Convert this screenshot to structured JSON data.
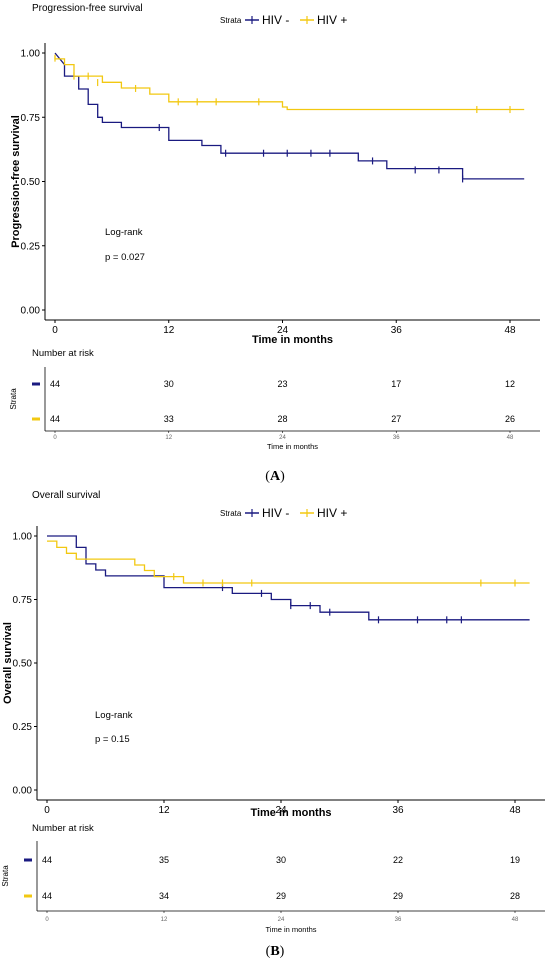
{
  "colors": {
    "hiv_neg": "#1a1a80",
    "hiv_pos": "#f2c811"
  },
  "chart_data": [
    {
      "type": "line",
      "panel": "A",
      "title": "Progression-free survival",
      "legend": {
        "title": "Strata",
        "placement": "top-center",
        "entries": [
          "HIV -",
          "HIV +"
        ]
      },
      "xlabel": "Time in months",
      "ylabel": "Progression-free survival",
      "xlim": [
        -2,
        50
      ],
      "ylim": [
        -0.05,
        1.05
      ],
      "xticks": [
        "0",
        "12",
        "24",
        "36",
        "48"
      ],
      "yticks": [
        "0.00",
        "0.25",
        "0.50",
        "0.75",
        "1.00"
      ],
      "annotations": [
        "Log-rank",
        "p = 0.027"
      ],
      "series": [
        {
          "name": "HIV -",
          "color": "#1a1a80",
          "steps": [
            [
              0,
              1.0
            ],
            [
              1,
              0.955
            ],
            [
              1,
              0.91
            ],
            [
              2.5,
              0.91
            ],
            [
              2.5,
              0.86
            ],
            [
              3.5,
              0.86
            ],
            [
              3.5,
              0.8
            ],
            [
              4.5,
              0.8
            ],
            [
              4.5,
              0.75
            ],
            [
              5,
              0.75
            ],
            [
              5,
              0.73
            ],
            [
              7,
              0.73
            ],
            [
              7,
              0.71
            ],
            [
              12,
              0.71
            ],
            [
              12,
              0.66
            ],
            [
              15.5,
              0.66
            ],
            [
              15.5,
              0.64
            ],
            [
              17.5,
              0.64
            ],
            [
              17.5,
              0.61
            ],
            [
              32,
              0.61
            ],
            [
              32,
              0.58
            ],
            [
              35,
              0.58
            ],
            [
              35,
              0.55
            ],
            [
              43,
              0.55
            ],
            [
              43,
              0.51
            ],
            [
              49.5,
              0.51
            ]
          ],
          "censors": [
            [
              11,
              0.71
            ],
            [
              18,
              0.61
            ],
            [
              22,
              0.61
            ],
            [
              24.5,
              0.61
            ],
            [
              27,
              0.61
            ],
            [
              29,
              0.61
            ],
            [
              33.5,
              0.58
            ],
            [
              38,
              0.545
            ],
            [
              40.5,
              0.545
            ],
            [
              43,
              0.51
            ]
          ]
        },
        {
          "name": "HIV +",
          "color": "#f2c811",
          "steps": [
            [
              0,
              0.99
            ],
            [
              0,
              0.977
            ],
            [
              1,
              0.977
            ],
            [
              1,
              0.955
            ],
            [
              2,
              0.955
            ],
            [
              2,
              0.91
            ],
            [
              5,
              0.91
            ],
            [
              5,
              0.886
            ],
            [
              7,
              0.886
            ],
            [
              7,
              0.864
            ],
            [
              10,
              0.864
            ],
            [
              10,
              0.84
            ],
            [
              12,
              0.84
            ],
            [
              12,
              0.81
            ],
            [
              24,
              0.81
            ],
            [
              24,
              0.79
            ],
            [
              24.5,
              0.79
            ],
            [
              24.5,
              0.78
            ],
            [
              49.5,
              0.78
            ]
          ],
          "censors": [
            [
              0,
              0.98
            ],
            [
              2,
              0.91
            ],
            [
              3.5,
              0.91
            ],
            [
              4.5,
              0.885
            ],
            [
              8.5,
              0.862
            ],
            [
              13,
              0.81
            ],
            [
              15,
              0.81
            ],
            [
              17,
              0.81
            ],
            [
              21.5,
              0.81
            ],
            [
              44.5,
              0.78
            ],
            [
              48,
              0.78
            ]
          ]
        }
      ],
      "risk_table": {
        "title": "Number at risk",
        "strata_label": "Strata",
        "xlabel": "Time in months",
        "xticks": [
          "0",
          "12",
          "24",
          "36",
          "48"
        ],
        "rows": [
          {
            "name": "HIV -",
            "values": [
              "44",
              "30",
              "23",
              "17",
              "12"
            ]
          },
          {
            "name": "HIV +",
            "values": [
              "44",
              "33",
              "28",
              "27",
              "26"
            ]
          }
        ]
      }
    },
    {
      "type": "line",
      "panel": "B",
      "title": "Overall survival",
      "legend": {
        "title": "Strata",
        "placement": "top-center",
        "entries": [
          "HIV -",
          "HIV +"
        ]
      },
      "xlabel": "Time in months",
      "ylabel": "Overall survival",
      "xlim": [
        -2,
        50
      ],
      "ylim": [
        -0.05,
        1.05
      ],
      "xticks": [
        "0",
        "12",
        "24",
        "36",
        "48"
      ],
      "yticks": [
        "0.00",
        "0.25",
        "0.50",
        "0.75",
        "1.00"
      ],
      "annotations": [
        "Log-rank",
        "p = 0.15"
      ],
      "series": [
        {
          "name": "HIV -",
          "color": "#1a1a80",
          "steps": [
            [
              0,
              1.0
            ],
            [
              3,
              1.0
            ],
            [
              3,
              0.955
            ],
            [
              4,
              0.955
            ],
            [
              4,
              0.89
            ],
            [
              5,
              0.89
            ],
            [
              5,
              0.866
            ],
            [
              6,
              0.866
            ],
            [
              6,
              0.843
            ],
            [
              12,
              0.843
            ],
            [
              12,
              0.797
            ],
            [
              19,
              0.797
            ],
            [
              19,
              0.774
            ],
            [
              23,
              0.774
            ],
            [
              23,
              0.75
            ],
            [
              25,
              0.75
            ],
            [
              25,
              0.726
            ],
            [
              28,
              0.726
            ],
            [
              28,
              0.7
            ],
            [
              33,
              0.7
            ],
            [
              33,
              0.67
            ],
            [
              49.5,
              0.67
            ]
          ],
          "censors": [
            [
              18,
              0.797
            ],
            [
              22,
              0.774
            ],
            [
              25,
              0.726
            ],
            [
              27,
              0.726
            ],
            [
              29,
              0.7
            ],
            [
              34,
              0.67
            ],
            [
              38,
              0.67
            ],
            [
              41,
              0.67
            ],
            [
              42.5,
              0.67
            ]
          ]
        },
        {
          "name": "HIV +",
          "color": "#f2c811",
          "steps": [
            [
              0,
              0.98
            ],
            [
              1,
              0.98
            ],
            [
              1,
              0.955
            ],
            [
              2,
              0.955
            ],
            [
              2,
              0.932
            ],
            [
              3,
              0.932
            ],
            [
              3,
              0.909
            ],
            [
              9,
              0.909
            ],
            [
              9,
              0.886
            ],
            [
              10,
              0.886
            ],
            [
              10,
              0.864
            ],
            [
              11,
              0.864
            ],
            [
              11,
              0.84
            ],
            [
              14,
              0.84
            ],
            [
              14,
              0.815
            ],
            [
              49.5,
              0.815
            ]
          ],
          "censors": [
            [
              13,
              0.84
            ],
            [
              16,
              0.815
            ],
            [
              18,
              0.815
            ],
            [
              21,
              0.815
            ],
            [
              44.5,
              0.815
            ],
            [
              48,
              0.815
            ]
          ]
        }
      ],
      "risk_table": {
        "title": "Number at risk",
        "strata_label": "Strata",
        "xlabel": "Time in months",
        "xticks": [
          "0",
          "12",
          "24",
          "36",
          "48"
        ],
        "rows": [
          {
            "name": "HIV -",
            "values": [
              "44",
              "35",
              "30",
              "22",
              "19"
            ]
          },
          {
            "name": "HIV +",
            "values": [
              "44",
              "34",
              "29",
              "29",
              "28"
            ]
          }
        ]
      }
    }
  ],
  "captions": [
    "(A)",
    "(B)"
  ]
}
